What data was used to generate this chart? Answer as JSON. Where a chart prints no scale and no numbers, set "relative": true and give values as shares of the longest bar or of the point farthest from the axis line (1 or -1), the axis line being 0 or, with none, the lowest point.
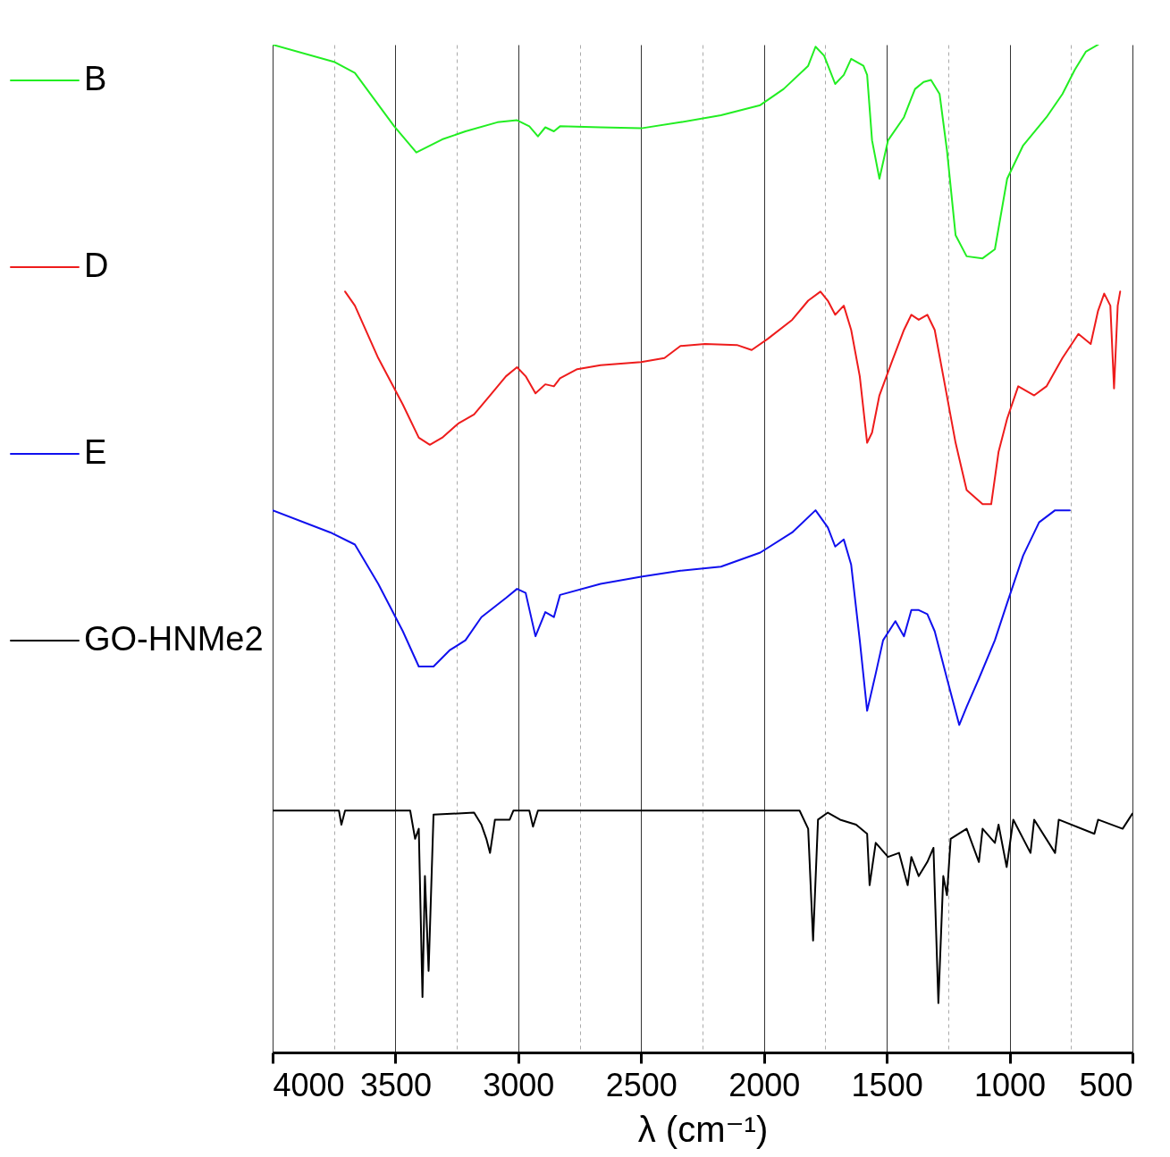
{
  "chart_data": {
    "type": "line",
    "relative": true,
    "xlabel": "λ (cm⁻¹)",
    "xlim": [
      4000,
      500
    ],
    "xticks": [
      4000,
      {
        "value": 3750,
        "label": null
      },
      3500,
      {
        "value": 3250,
        "label": null
      },
      3000,
      {
        "value": 2750,
        "label": null
      },
      2500,
      {
        "value": 2250,
        "label": null
      },
      2000,
      {
        "value": 1750,
        "label": null
      },
      1500,
      {
        "value": 1250,
        "label": null
      },
      1000,
      {
        "value": 750,
        "label": null
      },
      500
    ],
    "grid": "x",
    "legend": "left",
    "line_style": "solid",
    "marker": "none",
    "series": [
      {
        "name": "B",
        "color": "#22ee22",
        "x": [
          4000,
          3750,
          3665,
          3505,
          3415,
          3310,
          3215,
          3085,
          3005,
          2955,
          2920,
          2890,
          2855,
          2830,
          2665,
          2500,
          2340,
          2175,
          2015,
          1920,
          1820,
          1790,
          1755,
          1710,
          1675,
          1645,
          1595,
          1580,
          1560,
          1530,
          1495,
          1430,
          1400,
          1385,
          1350,
          1320,
          1285,
          1255,
          1220,
          1175,
          1110,
          1060,
          1010,
          945,
          850,
          785,
          735,
          690,
          640
        ],
        "values": [
          1.0,
          0.983,
          0.972,
          0.919,
          0.893,
          0.906,
          0.914,
          0.923,
          0.925,
          0.919,
          0.909,
          0.918,
          0.914,
          0.919,
          0.918,
          0.917,
          0.923,
          0.93,
          0.94,
          0.956,
          0.979,
          0.998,
          0.989,
          0.961,
          0.97,
          0.986,
          0.979,
          0.97,
          0.905,
          0.867,
          0.905,
          0.928,
          0.947,
          0.956,
          0.963,
          0.965,
          0.951,
          0.895,
          0.811,
          0.79,
          0.788,
          0.797,
          0.867,
          0.9,
          0.928,
          0.951,
          0.975,
          0.993,
          1.0
        ]
      },
      {
        "name": "D",
        "color": "#ee1c1c",
        "x": [
          3705,
          3665,
          3570,
          3470,
          3405,
          3360,
          3310,
          3245,
          3180,
          3115,
          3050,
          3005,
          2970,
          2930,
          2890,
          2855,
          2830,
          2760,
          2665,
          2500,
          2405,
          2340,
          2240,
          2110,
          2050,
          1985,
          1885,
          1820,
          1770,
          1740,
          1710,
          1675,
          1645,
          1610,
          1580,
          1560,
          1530,
          1480,
          1430,
          1400,
          1370,
          1335,
          1305,
          1270,
          1220,
          1175,
          1110,
          1075,
          1045,
          1010,
          965,
          900,
          850,
          785,
          720,
          670,
          640,
          615,
          590,
          575,
          560,
          550
        ],
        "values": [
          0.755,
          0.741,
          0.689,
          0.643,
          0.61,
          0.603,
          0.61,
          0.624,
          0.633,
          0.652,
          0.671,
          0.68,
          0.671,
          0.654,
          0.663,
          0.661,
          0.669,
          0.678,
          0.682,
          0.685,
          0.689,
          0.701,
          0.703,
          0.702,
          0.697,
          0.708,
          0.727,
          0.746,
          0.755,
          0.746,
          0.732,
          0.741,
          0.717,
          0.671,
          0.605,
          0.615,
          0.652,
          0.685,
          0.717,
          0.732,
          0.727,
          0.732,
          0.717,
          0.671,
          0.605,
          0.558,
          0.544,
          0.544,
          0.596,
          0.629,
          0.661,
          0.652,
          0.661,
          0.689,
          0.713,
          0.703,
          0.736,
          0.753,
          0.741,
          0.659,
          0.741,
          0.755
        ]
      },
      {
        "name": "E",
        "color": "#1010ee",
        "x": [
          4000,
          3765,
          3665,
          3570,
          3470,
          3405,
          3345,
          3280,
          3215,
          3150,
          3050,
          3005,
          2970,
          2930,
          2890,
          2855,
          2830,
          2665,
          2500,
          2340,
          2175,
          2015,
          1885,
          1790,
          1740,
          1710,
          1675,
          1645,
          1610,
          1580,
          1545,
          1515,
          1465,
          1430,
          1400,
          1370,
          1335,
          1305,
          1255,
          1205,
          1175,
          1125,
          1060,
          1010,
          945,
          880,
          815,
          755
        ],
        "values": [
          0.538,
          0.516,
          0.504,
          0.465,
          0.418,
          0.383,
          0.383,
          0.399,
          0.409,
          0.432,
          0.451,
          0.46,
          0.456,
          0.413,
          0.437,
          0.432,
          0.454,
          0.465,
          0.472,
          0.478,
          0.482,
          0.496,
          0.516,
          0.538,
          0.521,
          0.502,
          0.509,
          0.484,
          0.409,
          0.339,
          0.376,
          0.409,
          0.428,
          0.413,
          0.439,
          0.439,
          0.435,
          0.418,
          0.371,
          0.325,
          0.343,
          0.371,
          0.409,
          0.446,
          0.493,
          0.526,
          0.538,
          0.538
        ]
      },
      {
        "name": "GO-HNMe2",
        "color": "#000000",
        "x": [
          4000,
          3730,
          3720,
          3705,
          3440,
          3420,
          3405,
          3390,
          3380,
          3365,
          3345,
          3180,
          3150,
          3130,
          3115,
          3095,
          3035,
          3020,
          2955,
          2940,
          2920,
          1855,
          1820,
          1800,
          1780,
          1740,
          1690,
          1625,
          1580,
          1570,
          1545,
          1495,
          1450,
          1415,
          1400,
          1370,
          1335,
          1310,
          1290,
          1270,
          1255,
          1240,
          1175,
          1125,
          1110,
          1060,
          1045,
          1012,
          985,
          915,
          900,
          815,
          800,
          655,
          640,
          540,
          500
        ],
        "values": [
          0.24,
          0.24,
          0.226,
          0.24,
          0.24,
          0.212,
          0.222,
          0.055,
          0.175,
          0.081,
          0.236,
          0.238,
          0.226,
          0.212,
          0.198,
          0.231,
          0.231,
          0.24,
          0.24,
          0.224,
          0.24,
          0.24,
          0.222,
          0.111,
          0.231,
          0.238,
          0.231,
          0.226,
          0.217,
          0.166,
          0.208,
          0.194,
          0.198,
          0.166,
          0.194,
          0.175,
          0.189,
          0.203,
          0.049,
          0.175,
          0.156,
          0.212,
          0.222,
          0.189,
          0.222,
          0.208,
          0.226,
          0.184,
          0.231,
          0.198,
          0.231,
          0.198,
          0.231,
          0.217,
          0.231,
          0.222,
          0.237
        ]
      }
    ]
  }
}
